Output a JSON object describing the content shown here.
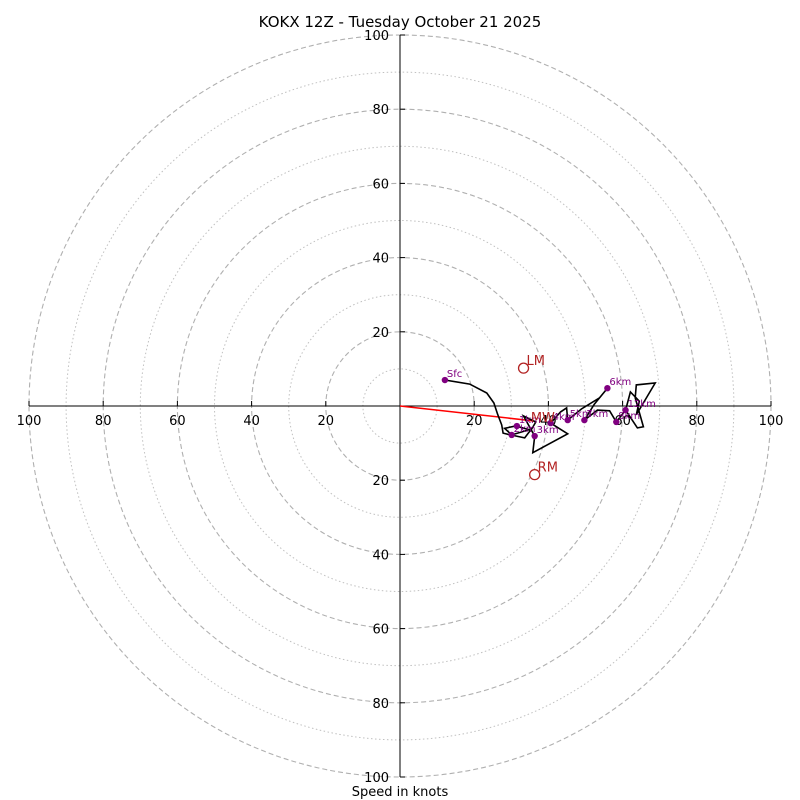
{
  "chart_data": {
    "type": "scatter",
    "subtype": "hodograph",
    "title": "KOKX 12Z - Tuesday October 21 2025",
    "xlabel": "Speed in knots",
    "ylabel": "",
    "xlim": [
      -100,
      100
    ],
    "ylim": [
      -100,
      100
    ],
    "grid": "polar rings",
    "ring_major_kt": [
      20,
      40,
      60,
      80,
      100
    ],
    "ring_minor_kt": [
      10,
      30,
      50,
      70,
      90
    ],
    "x_tick_labels": [
      "100",
      "80",
      "60",
      "40",
      "20",
      "20",
      "40",
      "60",
      "80",
      "100"
    ],
    "x_tick_values": [
      -100,
      -80,
      -60,
      -40,
      -20,
      20,
      40,
      60,
      80,
      100
    ],
    "y_tick_labels": [
      "100",
      "80",
      "60",
      "40",
      "20",
      "20",
      "40",
      "60",
      "80",
      "100"
    ],
    "y_tick_values": [
      100,
      80,
      60,
      40,
      20,
      -20,
      -40,
      -60,
      -80,
      -100
    ],
    "colors": {
      "trace": "#000000",
      "height_markers": "#800080",
      "storm_motion": "#b22222",
      "shear_vector": "#ff0000",
      "grid": "#b0b0b0",
      "axes": "#000000"
    },
    "trace_uv": [
      [
        12.1,
        7.0
      ],
      [
        18.8,
        5.9
      ],
      [
        23.4,
        3.5
      ],
      [
        25.3,
        0.8
      ],
      [
        26.3,
        -2.2
      ],
      [
        27.4,
        -5.1
      ],
      [
        27.8,
        -7.3
      ],
      [
        29.8,
        -7.8
      ],
      [
        33.6,
        -8.6
      ],
      [
        35.2,
        -6.5
      ],
      [
        31.2,
        -5.4
      ],
      [
        28.2,
        -6.0
      ],
      [
        30.1,
        -7.8
      ],
      [
        35.5,
        -6.2
      ],
      [
        36.6,
        -4.3
      ],
      [
        33.3,
        -2.7
      ],
      [
        36.3,
        -8.1
      ],
      [
        35.8,
        -12.6
      ],
      [
        45.2,
        -7.5
      ],
      [
        40.6,
        -4.6
      ],
      [
        43.3,
        -1.6
      ],
      [
        44.9,
        -0.5
      ],
      [
        45.2,
        -3.8
      ],
      [
        48.9,
        -0.8
      ],
      [
        53.8,
        2.2
      ],
      [
        55.9,
        4.8
      ],
      [
        52.4,
        0.5
      ],
      [
        49.7,
        -3.8
      ],
      [
        53.2,
        -1.1
      ],
      [
        56.5,
        -1.3
      ],
      [
        58.3,
        -4.3
      ],
      [
        60.8,
        -1.1
      ],
      [
        62.1,
        3.8
      ],
      [
        64.5,
        1.3
      ],
      [
        63.7,
        -2.4
      ],
      [
        68.8,
        6.2
      ],
      [
        63.7,
        5.7
      ],
      [
        63.4,
        2.2
      ],
      [
        65.6,
        -5.6
      ],
      [
        64.0,
        -5.9
      ],
      [
        60.8,
        -1.1
      ]
    ],
    "height_points": [
      {
        "label": "Sfc",
        "u": 12.1,
        "v": 7.0
      },
      {
        "label": "1km",
        "u": 31.5,
        "v": -5.4
      },
      {
        "label": "2km",
        "u": 30.1,
        "v": -7.8
      },
      {
        "label": "3km",
        "u": 36.3,
        "v": -8.1
      },
      {
        "label": "4km",
        "u": 40.6,
        "v": -4.6
      },
      {
        "label": "5km",
        "u": 45.2,
        "v": -3.8
      },
      {
        "label": "6km",
        "u": 55.9,
        "v": 4.8
      },
      {
        "label": "7km",
        "u": 49.7,
        "v": -3.8
      },
      {
        "label": "8km",
        "u": 58.3,
        "v": -4.3
      },
      {
        "label": "12km",
        "u": 60.8,
        "v": -1.1
      }
    ],
    "storm_motions": [
      {
        "label": "LM",
        "u": 33.3,
        "v": 10.2
      },
      {
        "label": "RM",
        "u": 36.3,
        "v": -18.5
      },
      {
        "label": "MW",
        "u": 35.8,
        "v": -4.0
      }
    ],
    "shear_vector": {
      "from": [
        0,
        0
      ],
      "to": [
        35.8,
        -4.0
      ]
    }
  }
}
